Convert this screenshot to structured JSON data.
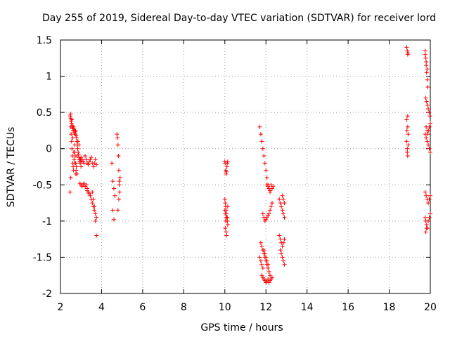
{
  "chart_data": {
    "type": "scatter",
    "title": "Day 255 of 2019, Sidereal Day-to-day VTEC variation (SDTVAR) for receiver lord",
    "xlabel": "GPS time / hours",
    "ylabel": "SDTVAR / TECUs",
    "xlim": [
      2,
      20
    ],
    "ylim": [
      -2,
      1.5
    ],
    "xticks": [
      2,
      4,
      6,
      8,
      10,
      12,
      14,
      16,
      18,
      20
    ],
    "xtick_labels": [
      "2",
      "4",
      "6",
      "8",
      "10",
      "12",
      "14",
      "16",
      "18",
      "20"
    ],
    "yticks": [
      1.5,
      1,
      0.5,
      0,
      -0.5,
      -1,
      -1.5,
      -2
    ],
    "ytick_labels": [
      "1.5",
      "1",
      "0.5",
      "0",
      "-0.5",
      "-1",
      "-1.5",
      "-2"
    ],
    "grid": true,
    "marker": "+",
    "color": "#ff0000",
    "series": [
      {
        "name": "SDTVAR",
        "x": [
          2.48,
          2.5,
          2.52,
          2.54,
          2.56,
          2.58,
          2.6,
          2.62,
          2.64,
          2.66,
          2.68,
          2.7,
          2.72,
          2.74,
          2.76,
          2.78,
          2.8,
          2.82,
          2.84,
          2.86,
          2.88,
          2.9,
          2.92,
          2.94,
          2.96,
          2.98,
          3.0,
          2.5,
          2.52,
          2.54,
          2.56,
          2.58,
          2.6,
          2.62,
          2.64,
          2.66,
          2.68,
          2.7,
          2.72,
          2.74,
          2.76,
          2.78,
          2.8,
          2.5,
          2.55,
          2.6,
          2.65,
          2.7,
          2.75,
          2.8,
          2.85,
          2.9,
          2.95,
          3.0,
          3.0,
          3.05,
          3.1,
          3.15,
          3.2,
          3.25,
          3.3,
          3.35,
          3.4,
          3.45,
          3.5,
          3.55,
          3.6,
          3.65,
          3.7,
          3.75,
          2.95,
          3.0,
          3.05,
          3.1,
          3.15,
          3.2,
          3.25,
          3.3,
          3.3,
          3.35,
          3.4,
          3.45,
          3.5,
          3.55,
          3.6,
          3.65,
          3.7,
          3.75,
          3.55,
          3.6,
          3.65,
          3.7,
          3.75,
          2.47,
          2.5,
          4.5,
          4.55,
          4.6,
          4.65,
          4.55,
          4.6,
          4.75,
          4.78,
          4.8,
          4.82,
          4.84,
          4.86,
          4.88,
          4.8,
          4.84,
          4.86,
          4.9,
          10.0,
          10.02,
          10.04,
          10.06,
          10.08,
          10.1,
          10.12,
          10.14,
          10.0,
          10.02,
          10.04,
          10.06,
          10.08,
          10.1,
          10.12,
          10.14,
          10.02,
          10.06,
          10.08,
          10.12,
          10.14,
          10.0,
          10.02,
          10.04,
          10.06,
          11.7,
          11.75,
          11.8,
          11.85,
          11.9,
          11.95,
          12.0,
          12.05,
          12.1,
          12.15,
          12.2,
          11.85,
          11.9,
          11.95,
          12.0,
          12.05,
          12.1,
          12.15,
          12.2,
          12.25,
          12.3,
          11.7,
          11.75,
          11.8,
          11.85,
          11.9,
          11.95,
          12.0,
          12.05,
          12.1,
          12.15,
          11.8,
          11.85,
          11.9,
          11.95,
          12.0,
          12.05,
          12.1,
          12.15,
          12.2,
          12.25,
          12.3,
          12.05,
          12.1,
          12.15,
          12.2,
          12.25,
          12.3,
          12.35,
          11.75,
          11.8,
          11.85,
          11.9,
          11.95,
          12.0,
          12.05,
          12.1,
          12.15,
          12.2,
          12.65,
          12.7,
          12.75,
          12.8,
          12.85,
          12.9,
          12.65,
          12.7,
          12.75,
          12.8,
          12.85,
          12.9,
          12.7,
          12.75,
          12.8,
          12.85,
          12.9,
          12.8,
          12.85,
          12.9,
          18.85,
          18.88,
          18.9,
          18.92,
          18.85,
          18.9,
          18.92,
          18.85,
          18.88,
          18.9,
          18.92,
          18.86,
          18.9,
          18.88,
          19.75,
          19.78,
          19.8,
          19.82,
          19.85,
          19.88,
          19.75,
          19.8,
          19.85,
          19.78,
          19.82,
          19.86,
          19.9,
          19.94,
          19.98,
          19.8,
          19.84,
          19.88,
          19.92,
          19.96,
          20.0,
          19.75,
          19.8,
          19.85,
          19.9,
          19.95,
          20.0,
          19.75,
          19.78,
          19.82,
          19.86,
          19.9,
          19.95,
          20.0,
          19.75,
          19.8,
          19.85,
          19.9,
          19.95,
          20.0,
          19.78,
          19.82
        ],
        "y": [
          0.45,
          0.42,
          0.38,
          0.35,
          0.3,
          0.32,
          0.28,
          0.25,
          0.3,
          0.27,
          0.22,
          0.25,
          0.2,
          0.24,
          0.18,
          0.15,
          0.1,
          0.05,
          0.0,
          -0.05,
          -0.08,
          -0.12,
          -0.15,
          -0.18,
          -0.2,
          -0.15,
          -0.18,
          0.3,
          0.2,
          0.1,
          0.0,
          -0.1,
          -0.2,
          -0.25,
          -0.3,
          -0.15,
          -0.05,
          0.05,
          -0.1,
          -0.2,
          -0.3,
          -0.25,
          -0.35,
          0.48,
          0.4,
          0.15,
          -0.05,
          -0.2,
          -0.35,
          -0.1,
          0.1,
          0.05,
          -0.15,
          -0.25,
          -0.12,
          -0.15,
          -0.18,
          -0.2,
          -0.1,
          -0.15,
          -0.2,
          -0.22,
          -0.18,
          -0.15,
          -0.12,
          -0.2,
          -0.25,
          -0.2,
          -0.15,
          -0.22,
          -0.48,
          -0.5,
          -0.52,
          -0.5,
          -0.48,
          -0.52,
          -0.5,
          -0.55,
          -0.58,
          -0.6,
          -0.62,
          -0.65,
          -0.7,
          -0.75,
          -0.8,
          -0.85,
          -0.9,
          -0.95,
          -0.6,
          -0.7,
          -0.8,
          -1.0,
          -1.2,
          -0.6,
          -0.4,
          -0.2,
          -0.45,
          -0.55,
          -0.65,
          -0.85,
          -0.98,
          0.2,
          0.15,
          0.05,
          -0.1,
          -0.3,
          -0.45,
          -0.6,
          -0.85,
          -0.7,
          -0.5,
          -0.4,
          -0.18,
          -0.2,
          -0.3,
          -0.35,
          -0.32,
          -0.25,
          -0.2,
          -0.18,
          -0.7,
          -0.75,
          -0.8,
          -0.85,
          -0.9,
          -0.95,
          -1.0,
          -1.05,
          -1.1,
          -1.15,
          -1.2,
          -0.95,
          -0.8,
          -0.85,
          -0.9,
          -1.0,
          -0.95,
          0.3,
          0.2,
          0.1,
          0.0,
          -0.1,
          -0.2,
          -0.3,
          -0.4,
          -0.5,
          -0.55,
          -0.6,
          -0.9,
          -0.95,
          -1.0,
          -0.98,
          -0.95,
          -0.92,
          -0.9,
          -0.85,
          -0.8,
          -0.75,
          -1.5,
          -1.55,
          -1.6,
          -1.65,
          -1.4,
          -1.45,
          -1.5,
          -1.55,
          -1.6,
          -1.7,
          -1.75,
          -1.78,
          -1.8,
          -1.82,
          -1.85,
          -1.83,
          -1.8,
          -1.85,
          -1.82,
          -1.8,
          -1.78,
          -0.5,
          -0.52,
          -0.55,
          -0.58,
          -0.5,
          -0.55,
          -0.52,
          -1.3,
          -1.35,
          -1.4,
          -1.45,
          -1.5,
          -1.55,
          -1.6,
          -1.65,
          -1.7,
          -1.75,
          -0.7,
          -0.75,
          -0.8,
          -0.85,
          -0.9,
          -0.95,
          -1.2,
          -1.25,
          -1.3,
          -1.35,
          -1.3,
          -1.25,
          -1.4,
          -1.45,
          -1.5,
          -1.55,
          -1.6,
          -0.65,
          -0.7,
          -0.75,
          1.4,
          1.35,
          1.3,
          1.32,
          0.4,
          0.3,
          0.2,
          0.1,
          0.0,
          -0.1,
          0.05,
          0.25,
          0.45,
          -0.05,
          1.35,
          1.25,
          1.15,
          1.05,
          0.95,
          0.85,
          1.3,
          1.2,
          1.1,
          0.7,
          0.65,
          0.6,
          0.55,
          0.5,
          0.45,
          0.3,
          0.25,
          0.2,
          0.25,
          0.3,
          0.35,
          -0.6,
          -0.65,
          -0.7,
          -0.75,
          -0.7,
          -0.65,
          -0.95,
          -1.0,
          -1.05,
          -1.1,
          -1.0,
          -0.95,
          -0.9,
          0.2,
          0.15,
          0.1,
          0.05,
          0.0,
          -0.05,
          -1.15,
          -1.1
        ]
      }
    ]
  }
}
